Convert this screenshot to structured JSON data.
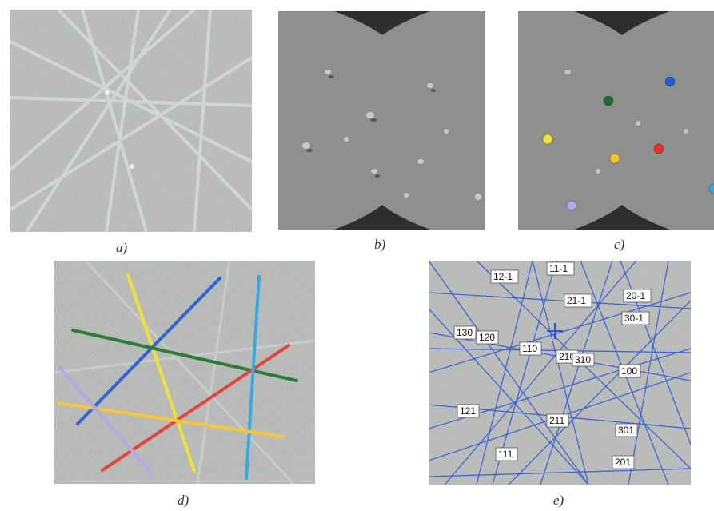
{
  "captions": [
    "a)",
    "b)",
    "c)",
    "d)",
    "e)"
  ],
  "panel_c": {
    "markers": [
      {
        "color": "#1f5fd6"
      },
      {
        "color": "#1c6b2a"
      },
      {
        "color": "#f2e23a"
      },
      {
        "color": "#e8302c"
      },
      {
        "color": "#f5c22a"
      },
      {
        "color": "#b7a6e6"
      },
      {
        "color": "#3aa7dd"
      }
    ]
  },
  "panel_d": {
    "lines": [
      {
        "color": "#f2df3c"
      },
      {
        "color": "#2f64d6"
      },
      {
        "color": "#2e7a3a"
      },
      {
        "color": "#e8403a"
      },
      {
        "color": "#3aa9e0"
      },
      {
        "color": "#f7c63a"
      },
      {
        "color": "#b7a6e6"
      }
    ]
  },
  "panel_e": {
    "line_color": "#2b55d8",
    "labels": [
      "11-1",
      "12-1",
      "21-1",
      "20-1",
      "30-1",
      "130",
      "120",
      "110",
      "210",
      "310",
      "100",
      "121",
      "211",
      "301",
      "111",
      "201"
    ]
  }
}
